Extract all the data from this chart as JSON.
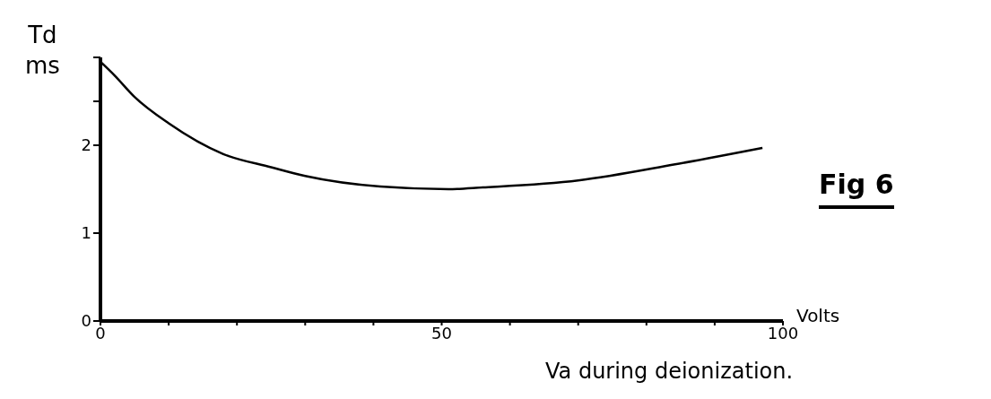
{
  "chart_data": {
    "type": "line",
    "title": "Fig 6",
    "xlabel": "Va during deionization.",
    "ylabel": "Td\nms",
    "annotations": [
      "Volts"
    ],
    "x": [
      0,
      2,
      5,
      10,
      18,
      25,
      30,
      41,
      51,
      56,
      70,
      84,
      97
    ],
    "series": [
      {
        "color": "#000000",
        "values": [
          2.95,
          2.8,
          2.55,
          2.25,
          1.9,
          1.75,
          1.65,
          1.53,
          1.5,
          1.52,
          1.6,
          1.78,
          1.97
        ]
      }
    ],
    "xlim": [
      0,
      100
    ],
    "xticks": [
      0,
      {
        "value": 10,
        "label": null
      },
      {
        "value": 20,
        "label": null
      },
      {
        "value": 30,
        "label": null
      },
      {
        "value": 40,
        "label": null
      },
      50,
      {
        "value": 60,
        "label": null
      },
      {
        "value": 70,
        "label": null
      },
      {
        "value": 80,
        "label": null
      },
      {
        "value": 90,
        "label": null
      },
      100
    ],
    "ylim": [
      0,
      3
    ],
    "yticks": [
      0,
      1,
      2,
      {
        "value": 2.5,
        "label": null
      },
      {
        "value": 3,
        "label": null
      }
    ],
    "grid": false,
    "legend": false,
    "marker": "none",
    "line_style": "solid"
  }
}
